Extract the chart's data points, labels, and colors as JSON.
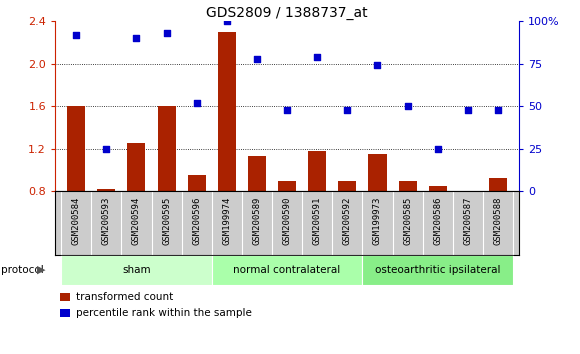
{
  "title": "GDS2809 / 1388737_at",
  "samples": [
    "GSM200584",
    "GSM200593",
    "GSM200594",
    "GSM200595",
    "GSM200596",
    "GSM199974",
    "GSM200589",
    "GSM200590",
    "GSM200591",
    "GSM200592",
    "GSM199973",
    "GSM200585",
    "GSM200586",
    "GSM200587",
    "GSM200588"
  ],
  "bar_values": [
    1.6,
    0.82,
    1.25,
    1.6,
    0.95,
    2.3,
    1.13,
    0.9,
    1.18,
    0.9,
    1.15,
    0.9,
    0.85,
    0.8,
    0.92
  ],
  "dot_percentiles": [
    92,
    25,
    90,
    93,
    52,
    100,
    78,
    48,
    79,
    48,
    74,
    50,
    25,
    48,
    48
  ],
  "bar_color": "#aa2200",
  "dot_color": "#0000cc",
  "ylim_left": [
    0.8,
    2.4
  ],
  "ylim_right": [
    0,
    100
  ],
  "yticks_left": [
    0.8,
    1.2,
    1.6,
    2.0,
    2.4
  ],
  "yticks_right": [
    0,
    25,
    50,
    75,
    100
  ],
  "ytick_labels_right": [
    "0",
    "25",
    "50",
    "75",
    "100%"
  ],
  "groups": [
    {
      "label": "sham",
      "start": 0,
      "end": 4,
      "color": "#ccffcc"
    },
    {
      "label": "normal contralateral",
      "start": 5,
      "end": 9,
      "color": "#aaffaa"
    },
    {
      "label": "osteoarthritic ipsilateral",
      "start": 10,
      "end": 14,
      "color": "#88ee88"
    }
  ],
  "protocol_label": "protocol",
  "legend_bar_label": "transformed count",
  "legend_dot_label": "percentile rank within the sample",
  "title_fontsize": 10,
  "axis_color_left": "#cc2200",
  "axis_color_right": "#0000cc",
  "plot_bg": "#ffffff",
  "label_bg": "#cccccc"
}
